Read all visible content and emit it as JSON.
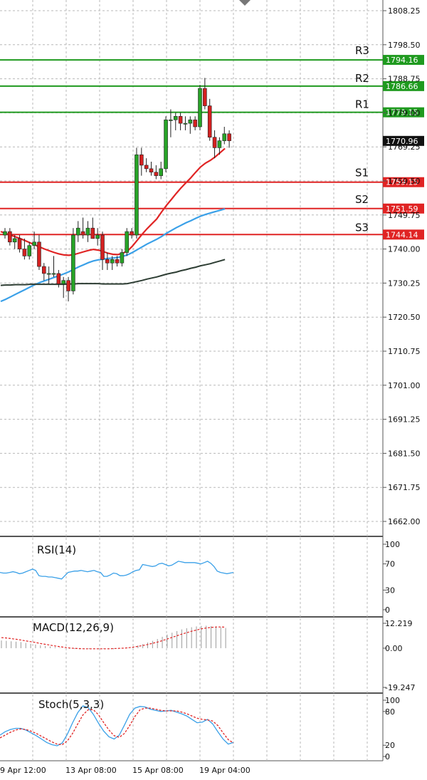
{
  "chart_data": [
    {
      "type": "candlestick",
      "panel": "price",
      "ylim": [
        1657,
        1813
      ],
      "y_ticks": [
        "1808.25",
        "1798.50",
        "1788.75",
        "1779.00",
        "1769.25",
        "1759.50",
        "1749.75",
        "1740.00",
        "1730.25",
        "1720.50",
        "1710.75",
        "1701.00",
        "1691.25",
        "1681.50",
        "1671.75",
        "1662.00"
      ],
      "current_price": "1770.96",
      "levels": [
        {
          "name": "R3",
          "label": "1794.16",
          "value": 1794.16,
          "color": "#1f9a1f"
        },
        {
          "name": "R2",
          "label": "1786.66",
          "value": 1786.66,
          "color": "#1f9a1f"
        },
        {
          "name": "R1",
          "label": "1779.15",
          "value": 1779.15,
          "color": "#1f9a1f"
        },
        {
          "name": "S1",
          "label": "1759.15",
          "value": 1759.15,
          "color": "#e02424"
        },
        {
          "name": "S2",
          "label": "1751.59",
          "value": 1751.59,
          "color": "#e02424"
        },
        {
          "name": "S3",
          "label": "1744.14",
          "value": 1744.14,
          "color": "#e02424"
        }
      ],
      "candles": [
        {
          "o": 1744,
          "h": 1746,
          "l": 1743,
          "c": 1745
        },
        {
          "o": 1745,
          "h": 1746,
          "l": 1741,
          "c": 1742
        },
        {
          "o": 1742,
          "h": 1744,
          "l": 1740,
          "c": 1743
        },
        {
          "o": 1743,
          "h": 1744,
          "l": 1739,
          "c": 1740
        },
        {
          "o": 1740,
          "h": 1743,
          "l": 1737,
          "c": 1738
        },
        {
          "o": 1738,
          "h": 1742,
          "l": 1737,
          "c": 1741
        },
        {
          "o": 1741,
          "h": 1745,
          "l": 1740,
          "c": 1742
        },
        {
          "o": 1742,
          "h": 1744,
          "l": 1734,
          "c": 1735
        },
        {
          "o": 1735,
          "h": 1736,
          "l": 1731,
          "c": 1733
        },
        {
          "o": 1733,
          "h": 1735,
          "l": 1730,
          "c": 1733
        },
        {
          "o": 1733,
          "h": 1738,
          "l": 1732,
          "c": 1733
        },
        {
          "o": 1733,
          "h": 1734,
          "l": 1729,
          "c": 1730
        },
        {
          "o": 1730,
          "h": 1732,
          "l": 1726,
          "c": 1731
        },
        {
          "o": 1731,
          "h": 1732,
          "l": 1725,
          "c": 1728
        },
        {
          "o": 1728,
          "h": 1746,
          "l": 1727,
          "c": 1744
        },
        {
          "o": 1744,
          "h": 1748,
          "l": 1742,
          "c": 1746
        },
        {
          "o": 1745,
          "h": 1749,
          "l": 1743,
          "c": 1744
        },
        {
          "o": 1744,
          "h": 1748,
          "l": 1742,
          "c": 1746
        },
        {
          "o": 1746,
          "h": 1749,
          "l": 1743,
          "c": 1743
        },
        {
          "o": 1743,
          "h": 1746,
          "l": 1741,
          "c": 1744
        },
        {
          "o": 1744,
          "h": 1745,
          "l": 1734,
          "c": 1737
        },
        {
          "o": 1737,
          "h": 1739,
          "l": 1734,
          "c": 1736
        },
        {
          "o": 1736,
          "h": 1738,
          "l": 1734,
          "c": 1737
        },
        {
          "o": 1737,
          "h": 1738,
          "l": 1735,
          "c": 1736
        },
        {
          "o": 1736,
          "h": 1740,
          "l": 1735,
          "c": 1739
        },
        {
          "o": 1739,
          "h": 1746,
          "l": 1738,
          "c": 1745
        },
        {
          "o": 1745,
          "h": 1746,
          "l": 1743,
          "c": 1744
        },
        {
          "o": 1744,
          "h": 1769,
          "l": 1743,
          "c": 1767
        },
        {
          "o": 1767,
          "h": 1769,
          "l": 1761,
          "c": 1764
        },
        {
          "o": 1764,
          "h": 1766,
          "l": 1762,
          "c": 1763
        },
        {
          "o": 1763,
          "h": 1765,
          "l": 1761,
          "c": 1762
        },
        {
          "o": 1762,
          "h": 1764,
          "l": 1760,
          "c": 1761
        },
        {
          "o": 1761,
          "h": 1765,
          "l": 1760,
          "c": 1763
        },
        {
          "o": 1763,
          "h": 1778,
          "l": 1762,
          "c": 1777
        },
        {
          "o": 1777,
          "h": 1780,
          "l": 1772,
          "c": 1777
        },
        {
          "o": 1777,
          "h": 1779,
          "l": 1774,
          "c": 1778
        },
        {
          "o": 1778,
          "h": 1779,
          "l": 1774,
          "c": 1776
        },
        {
          "o": 1776,
          "h": 1778,
          "l": 1774,
          "c": 1776
        },
        {
          "o": 1776,
          "h": 1778,
          "l": 1773,
          "c": 1777
        },
        {
          "o": 1777,
          "h": 1778,
          "l": 1774,
          "c": 1775
        },
        {
          "o": 1775,
          "h": 1787,
          "l": 1774,
          "c": 1786
        },
        {
          "o": 1786,
          "h": 1789,
          "l": 1780,
          "c": 1781
        },
        {
          "o": 1781,
          "h": 1783,
          "l": 1771,
          "c": 1772
        },
        {
          "o": 1772,
          "h": 1774,
          "l": 1766,
          "c": 1769
        },
        {
          "o": 1769,
          "h": 1772,
          "l": 1767,
          "c": 1771
        },
        {
          "o": 1771,
          "h": 1775,
          "l": 1770,
          "c": 1773
        },
        {
          "o": 1773,
          "h": 1774,
          "l": 1769,
          "c": 1771
        }
      ],
      "ma_series": [
        {
          "color": "#e02424",
          "values": [
            1745,
            1744.5,
            1744,
            1743.5,
            1743,
            1742.4,
            1741.8,
            1741.2,
            1740.6,
            1740,
            1739.5,
            1739,
            1738.6,
            1738.3,
            1738.2,
            1738.4,
            1738.8,
            1739.2,
            1739.6,
            1739.9,
            1739.7,
            1739.3,
            1738.8,
            1738.5,
            1738.4,
            1738.8,
            1739.4,
            1740.8,
            1742.5,
            1744.2,
            1745.8,
            1747.2,
            1748.6,
            1750.6,
            1752.5,
            1754.2,
            1755.9,
            1757.5,
            1759,
            1760.4,
            1762,
            1763.5,
            1764.6,
            1765.4,
            1766.4,
            1767.6,
            1768.8
          ]
        },
        {
          "color": "#3aa0e8",
          "values": [
            1725,
            1725.6,
            1726.3,
            1727,
            1727.7,
            1728.4,
            1729.1,
            1729.8,
            1730.4,
            1730.9,
            1731.4,
            1731.9,
            1732.4,
            1732.9,
            1733.5,
            1734.2,
            1734.9,
            1735.5,
            1736.1,
            1736.6,
            1736.9,
            1737.1,
            1737.3,
            1737.4,
            1737.6,
            1737.9,
            1738.3,
            1739,
            1739.8,
            1740.6,
            1741.4,
            1742.1,
            1742.8,
            1743.6,
            1744.5,
            1745.3,
            1746.1,
            1746.8,
            1747.5,
            1748.1,
            1748.8,
            1749.4,
            1749.9,
            1750.3,
            1750.7,
            1751.1,
            1751.5
          ]
        },
        {
          "color": "#2d3d33",
          "values": [
            1729.6,
            1729.7,
            1729.7,
            1729.8,
            1729.8,
            1729.8,
            1729.9,
            1729.9,
            1729.9,
            1729.9,
            1729.9,
            1729.9,
            1729.9,
            1729.9,
            1730,
            1730,
            1730.1,
            1730.1,
            1730.1,
            1730.1,
            1730.1,
            1730,
            1730,
            1730,
            1730,
            1730,
            1730.1,
            1730.4,
            1730.7,
            1731,
            1731.4,
            1731.7,
            1732,
            1732.4,
            1732.8,
            1733.1,
            1733.4,
            1733.8,
            1734.1,
            1734.5,
            1734.8,
            1735.2,
            1735.5,
            1735.8,
            1736.2,
            1736.6,
            1737
          ]
        }
      ]
    },
    {
      "type": "line",
      "panel": "rsi",
      "title": "RSI(14)",
      "ylim": [
        0,
        100
      ],
      "y_ticks": [
        "100",
        "70",
        "30",
        "0"
      ],
      "series": [
        {
          "color": "#3aa0e8",
          "values": [
            57,
            56,
            56,
            57,
            58,
            57,
            55,
            56,
            58,
            60,
            62,
            60,
            52,
            51,
            51,
            50,
            50,
            49,
            48,
            47,
            52,
            57,
            58,
            59,
            59,
            60,
            59,
            58,
            59,
            60,
            58,
            57,
            51,
            51,
            53,
            56,
            55,
            52,
            52,
            53,
            55,
            58,
            60,
            61,
            69,
            68,
            67,
            66,
            67,
            70,
            71,
            69,
            67,
            68,
            71,
            74,
            73,
            72,
            72,
            72,
            72,
            71,
            70,
            72,
            74,
            71,
            66,
            59,
            57,
            56,
            55,
            56,
            57
          ]
        }
      ]
    },
    {
      "type": "line",
      "panel": "macd",
      "title": "MACD(12,26,9)",
      "ylim": [
        -19.247,
        12.219
      ],
      "y_ticks": [
        "12.219",
        "0.00",
        "-19.247"
      ],
      "histogram": [
        3.8,
        3.6,
        3.4,
        3.2,
        3.0,
        2.6,
        2.2,
        1.8,
        1.4,
        1.1,
        0.8,
        0.5,
        0.2,
        -0.1,
        -0.3,
        -0.4,
        -0.5,
        -0.5,
        -0.4,
        -0.3,
        -0.3,
        -0.4,
        -0.5,
        -0.5,
        -0.4,
        -0.2,
        0.1,
        0.6,
        1.3,
        2.0,
        2.8,
        3.6,
        4.5,
        5.6,
        6.7,
        7.6,
        8.4,
        9.2,
        9.8,
        10.3,
        10.7,
        10.9,
        11.0,
        10.8,
        10.5,
        10.2,
        9.9
      ],
      "series": [
        {
          "color": "#e02424",
          "values": [
            5.2,
            5.0,
            4.7,
            4.4,
            4.0,
            3.6,
            3.2,
            2.8,
            2.3,
            1.9,
            1.5,
            1.1,
            0.7,
            0.4,
            0.1,
            -0.1,
            -0.2,
            -0.3,
            -0.3,
            -0.3,
            -0.3,
            -0.3,
            -0.3,
            -0.2,
            -0.1,
            0.0,
            0.2,
            0.5,
            0.9,
            1.3,
            1.8,
            2.4,
            3.0,
            3.7,
            4.5,
            5.3,
            6.1,
            6.9,
            7.6,
            8.3,
            8.9,
            9.5,
            9.9,
            10.2,
            10.4,
            10.4,
            10.3
          ]
        }
      ]
    },
    {
      "type": "line",
      "panel": "stoch",
      "title": "Stoch(5,3,3)",
      "ylim": [
        0,
        100
      ],
      "y_ticks": [
        "100",
        "80",
        "20",
        "0"
      ],
      "series": [
        {
          "color": "#3aa0e8",
          "values": [
            38,
            44,
            48,
            50,
            50,
            47,
            42,
            37,
            31,
            25,
            21,
            19,
            24,
            40,
            60,
            78,
            90,
            87,
            75,
            59,
            45,
            35,
            31,
            38,
            56,
            75,
            86,
            89,
            88,
            84,
            82,
            80,
            81,
            82,
            79,
            76,
            72,
            66,
            60,
            61,
            66,
            58,
            44,
            31,
            22,
            25
          ]
        },
        {
          "color": "#e02424",
          "values": [
            33,
            38,
            43,
            47,
            49,
            48,
            45,
            41,
            36,
            31,
            26,
            22,
            21,
            28,
            41,
            58,
            74,
            83,
            83,
            74,
            60,
            47,
            37,
            34,
            41,
            55,
            71,
            83,
            86,
            86,
            84,
            82,
            81,
            81,
            81,
            79,
            76,
            72,
            68,
            66,
            65,
            63,
            55,
            42,
            30,
            24
          ]
        }
      ]
    }
  ],
  "x_axis_labels": [
    "9 Apr 12:00",
    "13 Apr 08:00",
    "15 Apr 08:00",
    "19 Apr 04:00"
  ]
}
